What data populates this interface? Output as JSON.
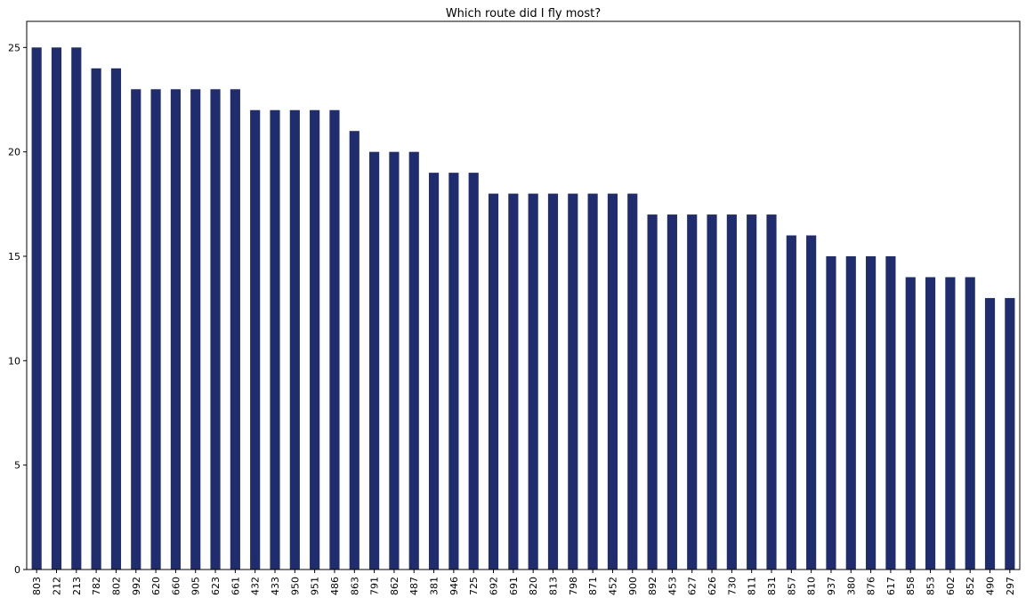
{
  "chart_data": {
    "type": "bar",
    "title": "Which route did I fly most?",
    "xlabel": "",
    "ylabel": "",
    "categories": [
      "803",
      "212",
      "213",
      "782",
      "802",
      "992",
      "620",
      "660",
      "905",
      "623",
      "661",
      "432",
      "433",
      "950",
      "951",
      "486",
      "863",
      "791",
      "862",
      "487",
      "381",
      "946",
      "725",
      "692",
      "691",
      "820",
      "813",
      "798",
      "871",
      "452",
      "900",
      "892",
      "453",
      "627",
      "626",
      "730",
      "811",
      "831",
      "857",
      "810",
      "937",
      "380",
      "876",
      "617",
      "858",
      "853",
      "602",
      "852",
      "490",
      "297"
    ],
    "values": [
      25,
      25,
      25,
      24,
      24,
      23,
      23,
      23,
      23,
      23,
      23,
      22,
      22,
      22,
      22,
      22,
      21,
      20,
      20,
      20,
      19,
      19,
      19,
      18,
      18,
      18,
      18,
      18,
      18,
      18,
      18,
      17,
      17,
      17,
      17,
      17,
      17,
      17,
      16,
      16,
      15,
      15,
      15,
      15,
      14,
      14,
      14,
      14,
      13,
      13
    ],
    "ylim": [
      0,
      26.25
    ],
    "yticks": [
      0,
      5,
      10,
      15,
      20,
      25
    ],
    "grid": false,
    "legend": "none",
    "bar_color": "#1f2d6e"
  }
}
